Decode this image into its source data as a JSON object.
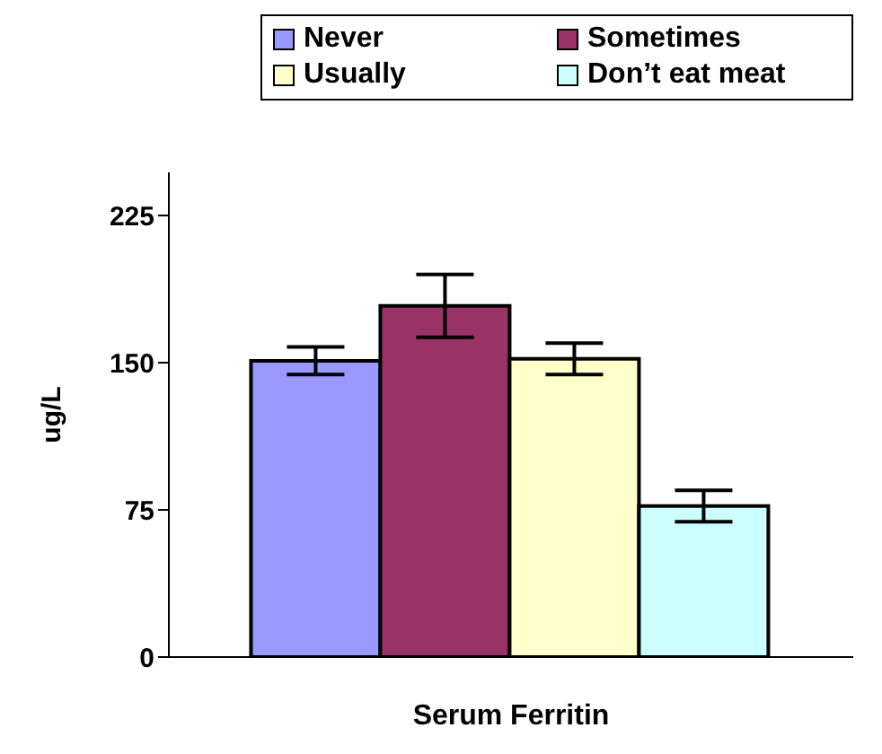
{
  "chart_data": {
    "type": "bar",
    "ylabel": "ug/L",
    "categories": [
      "Serum Ferritin"
    ],
    "series": [
      {
        "name": "Never",
        "color": "#9999ff",
        "values": [
          151
        ],
        "errors": [
          7
        ]
      },
      {
        "name": "Sometimes",
        "color": "#993366",
        "values": [
          179
        ],
        "errors": [
          16
        ]
      },
      {
        "name": "Usually",
        "color": "#ffffcc",
        "values": [
          152
        ],
        "errors": [
          8
        ]
      },
      {
        "name": "Don’t eat meat",
        "color": "#ccffff",
        "values": [
          77
        ],
        "errors": [
          8
        ]
      }
    ],
    "ylim": [
      0,
      247
    ],
    "yticks": [
      0,
      75,
      150,
      225
    ],
    "grid": false,
    "legend": "top"
  }
}
